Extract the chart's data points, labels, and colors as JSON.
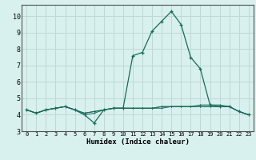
{
  "xlabel": "Humidex (Indice chaleur)",
  "bg_color": "#d8f0ee",
  "grid_color": "#c0d8d4",
  "line_color": "#1a6b5a",
  "xlim": [
    -0.5,
    23.5
  ],
  "ylim": [
    3.0,
    10.7
  ],
  "xticks": [
    0,
    1,
    2,
    3,
    4,
    5,
    6,
    7,
    8,
    9,
    10,
    11,
    12,
    13,
    14,
    15,
    16,
    17,
    18,
    19,
    20,
    21,
    22,
    23
  ],
  "yticks": [
    3,
    4,
    5,
    6,
    7,
    8,
    9,
    10
  ],
  "series": [
    [
      4.3,
      4.1,
      4.3,
      4.4,
      4.5,
      4.3,
      4.0,
      3.5,
      4.3,
      4.4,
      4.4,
      7.6,
      7.8,
      9.1,
      9.7,
      10.3,
      9.5,
      7.5,
      6.8,
      4.6,
      4.5,
      4.5,
      4.2,
      4.0
    ],
    [
      4.3,
      4.1,
      4.3,
      4.4,
      4.5,
      4.3,
      4.0,
      4.1,
      4.3,
      4.4,
      4.4,
      4.4,
      4.4,
      4.4,
      4.4,
      4.5,
      4.5,
      4.5,
      4.5,
      4.5,
      4.5,
      4.5,
      4.2,
      4.0
    ],
    [
      4.3,
      4.1,
      4.3,
      4.4,
      4.5,
      4.3,
      4.1,
      4.2,
      4.3,
      4.4,
      4.4,
      4.4,
      4.4,
      4.4,
      4.5,
      4.5,
      4.5,
      4.5,
      4.5,
      4.5,
      4.5,
      4.5,
      4.2,
      4.0
    ],
    [
      4.3,
      4.1,
      4.3,
      4.4,
      4.5,
      4.3,
      4.1,
      4.2,
      4.3,
      4.4,
      4.4,
      4.4,
      4.4,
      4.4,
      4.5,
      4.5,
      4.5,
      4.5,
      4.6,
      4.6,
      4.6,
      4.5,
      4.2,
      4.0
    ]
  ]
}
